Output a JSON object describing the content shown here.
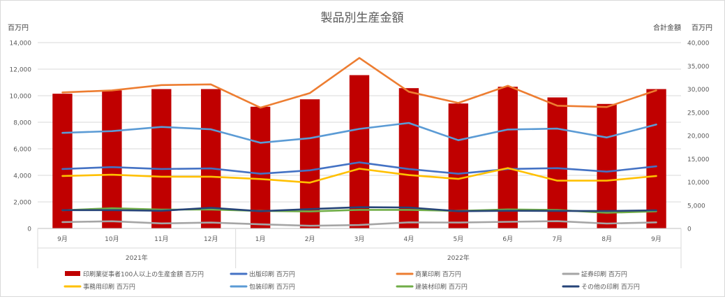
{
  "chart_data": {
    "type": "bar",
    "title": "製品別生産金額",
    "left_axis_unit": "百万円",
    "right_axis_title": "合計金額",
    "right_axis_unit": "百万円",
    "left_ylim": [
      0,
      14000
    ],
    "left_ticks": [
      "0",
      "2,000",
      "4,000",
      "6,000",
      "8,000",
      "10,000",
      "12,000",
      "14,000"
    ],
    "right_ylim": [
      0,
      40000
    ],
    "right_ticks": [
      "0",
      "5,000",
      "10,000",
      "15,000",
      "20,000",
      "25,000",
      "30,000",
      "35,000",
      "40,000"
    ],
    "categories": [
      "9月",
      "10月",
      "11月",
      "12月",
      "1月",
      "2月",
      "3月",
      "4月",
      "5月",
      "6月",
      "7月",
      "8月",
      "9月"
    ],
    "year_groups": [
      {
        "label": "2021年",
        "start": 0,
        "end": 3
      },
      {
        "label": "2022年",
        "start": 4,
        "end": 12
      }
    ],
    "grid": true,
    "legend_position": "bottom",
    "series": [
      {
        "name": "印刷業従事者100人以上の生産金額 百万円",
        "type": "bar",
        "axis": "right",
        "color": "#c00000",
        "values": [
          29000,
          29700,
          30000,
          30000,
          26200,
          27800,
          33000,
          30200,
          26900,
          30500,
          28200,
          26800,
          30000
        ]
      },
      {
        "name": "出版印刷 百万円",
        "type": "line",
        "axis": "left",
        "color": "#4472c4",
        "values": [
          4480,
          4620,
          4480,
          4520,
          4120,
          4380,
          4980,
          4480,
          4120,
          4480,
          4540,
          4280,
          4680
        ]
      },
      {
        "name": "商業印刷 百万円",
        "type": "line",
        "axis": "left",
        "color": "#ed7d31",
        "values": [
          10250,
          10400,
          10800,
          10850,
          9100,
          10200,
          12850,
          10300,
          9450,
          10750,
          9250,
          9150,
          10400
        ]
      },
      {
        "name": "証券印刷 百万円",
        "type": "line",
        "axis": "left",
        "color": "#a5a5a5",
        "values": [
          480,
          540,
          380,
          440,
          310,
          200,
          260,
          460,
          440,
          500,
          550,
          370,
          460
        ]
      },
      {
        "name": "事務用印刷 百万円",
        "type": "line",
        "axis": "left",
        "color": "#ffc000",
        "values": [
          3950,
          4050,
          3900,
          3900,
          3720,
          3450,
          4500,
          4020,
          3730,
          4550,
          3600,
          3600,
          3950
        ]
      },
      {
        "name": "包装印刷 百万円",
        "type": "line",
        "axis": "left",
        "color": "#5b9bd5",
        "values": [
          7200,
          7330,
          7650,
          7470,
          6450,
          6800,
          7500,
          7950,
          6650,
          7450,
          7520,
          6850,
          7830
        ]
      },
      {
        "name": "建装材印刷 百万円",
        "type": "line",
        "axis": "left",
        "color": "#70ad47",
        "values": [
          1370,
          1520,
          1420,
          1420,
          1320,
          1280,
          1400,
          1400,
          1320,
          1430,
          1390,
          1180,
          1290
        ]
      },
      {
        "name": "その他の印刷 百万円",
        "type": "line",
        "axis": "left",
        "color": "#264478",
        "values": [
          1380,
          1380,
          1330,
          1560,
          1300,
          1460,
          1600,
          1580,
          1300,
          1330,
          1320,
          1310,
          1370
        ]
      }
    ]
  }
}
